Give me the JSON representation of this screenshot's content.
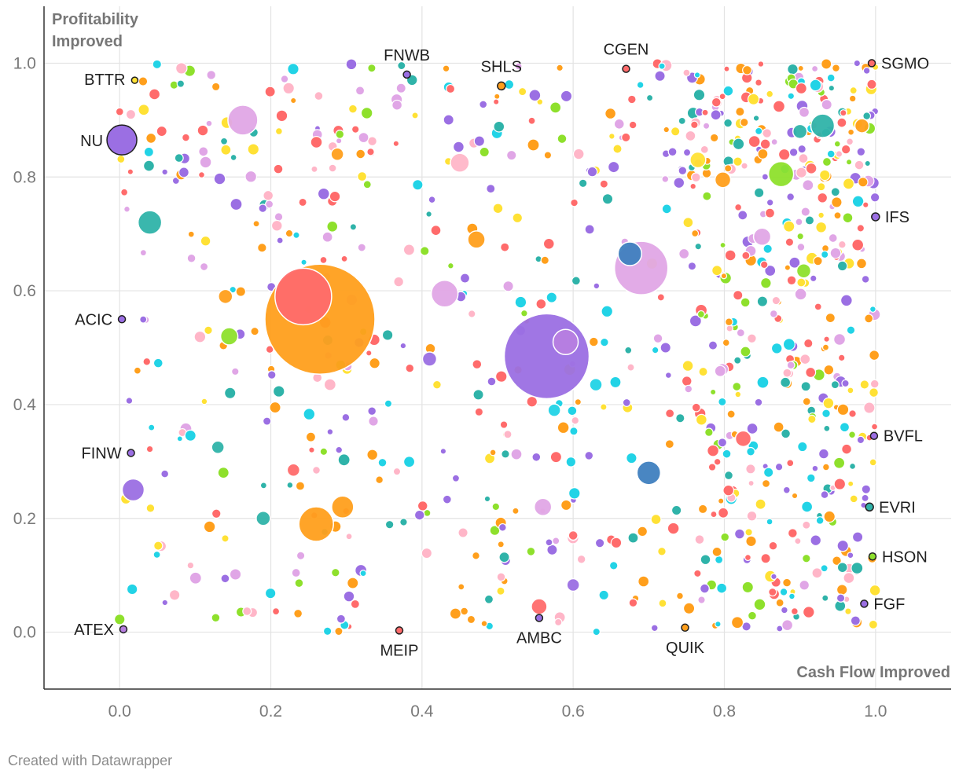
{
  "chart_data": {
    "type": "scatter",
    "xlim": [
      -0.1,
      1.1
    ],
    "ylim": [
      -0.1,
      1.1
    ],
    "x_ticks": [
      0.0,
      0.2,
      0.4,
      0.6,
      0.8,
      1.0
    ],
    "y_ticks": [
      0.0,
      0.2,
      0.4,
      0.6,
      0.8,
      1.0
    ],
    "x_tick_labels": [
      "0.0",
      "0.2",
      "0.4",
      "0.6",
      "0.8",
      "1.0"
    ],
    "y_tick_labels": [
      "0.0",
      "0.2",
      "0.4",
      "0.6",
      "0.8",
      "1.0"
    ],
    "xlabel": "Cash Flow Improved",
    "ylabel_top": "Profitability",
    "ylabel_bottom": "Improved",
    "grid": true,
    "labeled_points": [
      {
        "name": "BTTR",
        "x": 0.02,
        "y": 0.97,
        "size": 8,
        "color": "#ffe135"
      },
      {
        "name": "FNWB",
        "x": 0.38,
        "y": 0.98,
        "size": 9,
        "color": "#9b6fe3"
      },
      {
        "name": "SHLS",
        "x": 0.505,
        "y": 0.96,
        "size": 10,
        "color": "#ff9f1c"
      },
      {
        "name": "CGEN",
        "x": 0.67,
        "y": 0.99,
        "size": 9,
        "color": "#ff6b6b"
      },
      {
        "name": "SGMO",
        "x": 0.995,
        "y": 1.0,
        "size": 9,
        "color": "#ff6b6b"
      },
      {
        "name": "NU",
        "x": 0.003,
        "y": 0.865,
        "size": 38,
        "color": "#9b6fe3"
      },
      {
        "name": "IFS",
        "x": 1.0,
        "y": 0.73,
        "size": 10,
        "color": "#9b6fe3"
      },
      {
        "name": "ACIC",
        "x": 0.003,
        "y": 0.55,
        "size": 9,
        "color": "#9b6fe3"
      },
      {
        "name": "FINW",
        "x": 0.015,
        "y": 0.315,
        "size": 9,
        "color": "#9b6fe3"
      },
      {
        "name": "BVFL",
        "x": 0.998,
        "y": 0.345,
        "size": 9,
        "color": "#9b6fe3"
      },
      {
        "name": "EVRI",
        "x": 0.992,
        "y": 0.22,
        "size": 10,
        "color": "#2fb3a9"
      },
      {
        "name": "HSON",
        "x": 0.996,
        "y": 0.133,
        "size": 9,
        "color": "#8ee02c"
      },
      {
        "name": "FGF",
        "x": 0.985,
        "y": 0.05,
        "size": 9,
        "color": "#9b6fe3"
      },
      {
        "name": "ATEX",
        "x": 0.005,
        "y": 0.005,
        "size": 9,
        "color": "#b77ee0"
      },
      {
        "name": "MEIP",
        "x": 0.37,
        "y": 0.003,
        "size": 9,
        "color": "#ff6b6b"
      },
      {
        "name": "AMBC",
        "x": 0.555,
        "y": 0.025,
        "size": 9,
        "color": "#9b6fe3"
      },
      {
        "name": "QUIK",
        "x": 0.748,
        "y": 0.008,
        "size": 9,
        "color": "#ff9f1c"
      }
    ],
    "large_points": [
      {
        "x": 0.265,
        "y": 0.55,
        "size": 140,
        "color": "#ff9f1c"
      },
      {
        "x": 0.565,
        "y": 0.485,
        "size": 108,
        "color": "#9b6fe3"
      },
      {
        "x": 0.243,
        "y": 0.59,
        "size": 72,
        "color": "#ff6b6b"
      },
      {
        "x": 0.69,
        "y": 0.64,
        "size": 68,
        "color": "#e0a6e6"
      },
      {
        "x": 0.163,
        "y": 0.9,
        "size": 38,
        "color": "#e0a6e6"
      },
      {
        "x": 0.43,
        "y": 0.595,
        "size": 34,
        "color": "#e0a6e6"
      },
      {
        "x": 0.93,
        "y": 0.89,
        "size": 30,
        "color": "#2fb3a9"
      },
      {
        "x": 0.875,
        "y": 0.805,
        "size": 32,
        "color": "#8ee02c"
      },
      {
        "x": 0.26,
        "y": 0.19,
        "size": 44,
        "color": "#ff9f1c"
      },
      {
        "x": 0.295,
        "y": 0.22,
        "size": 28,
        "color": "#ff9f1c"
      },
      {
        "x": 0.7,
        "y": 0.28,
        "size": 30,
        "color": "#3f7fbf"
      },
      {
        "x": 0.675,
        "y": 0.665,
        "size": 30,
        "color": "#3f7fbf"
      },
      {
        "x": 0.04,
        "y": 0.72,
        "size": 30,
        "color": "#2fb3a9"
      },
      {
        "x": 0.018,
        "y": 0.25,
        "size": 28,
        "color": "#9b6fe3"
      },
      {
        "x": 0.45,
        "y": 0.825,
        "size": 24,
        "color": "#ffb6c8"
      },
      {
        "x": 0.59,
        "y": 0.51,
        "size": 32,
        "color": "#b77ee0"
      },
      {
        "x": 0.472,
        "y": 0.69,
        "size": 22,
        "color": "#ff9f1c"
      },
      {
        "x": 0.85,
        "y": 0.695,
        "size": 22,
        "color": "#e0a6e6"
      },
      {
        "x": 0.798,
        "y": 0.795,
        "size": 20,
        "color": "#ff9f1c"
      },
      {
        "x": 0.825,
        "y": 0.34,
        "size": 20,
        "color": "#ff6b6b"
      },
      {
        "x": 0.145,
        "y": 0.52,
        "size": 22,
        "color": "#8ee02c"
      },
      {
        "x": 0.56,
        "y": 0.22,
        "size": 22,
        "color": "#e0a6e6"
      },
      {
        "x": 0.41,
        "y": 0.48,
        "size": 18,
        "color": "#9b6fe3"
      },
      {
        "x": 0.765,
        "y": 0.83,
        "size": 20,
        "color": "#ffe135"
      },
      {
        "x": 0.982,
        "y": 0.89,
        "size": 18,
        "color": "#ff9f1c"
      },
      {
        "x": 0.905,
        "y": 0.635,
        "size": 18,
        "color": "#8ee02c"
      },
      {
        "x": 0.14,
        "y": 0.59,
        "size": 18,
        "color": "#ff9f1c"
      },
      {
        "x": 0.19,
        "y": 0.2,
        "size": 18,
        "color": "#2fb3a9"
      },
      {
        "x": 0.555,
        "y": 0.045,
        "size": 20,
        "color": "#ff6b6b"
      },
      {
        "x": 0.288,
        "y": 0.84,
        "size": 16,
        "color": "#ff9f1c"
      },
      {
        "x": 0.13,
        "y": 0.325,
        "size": 16,
        "color": "#2fb3a9"
      },
      {
        "x": 0.23,
        "y": 0.285,
        "size": 16,
        "color": "#ff6b6b"
      },
      {
        "x": 0.63,
        "y": 0.435,
        "size": 16,
        "color": "#22d3e6"
      },
      {
        "x": 0.575,
        "y": 0.39,
        "size": 16,
        "color": "#22d3e6"
      },
      {
        "x": 0.9,
        "y": 0.88,
        "size": 18,
        "color": "#2fb3a9"
      },
      {
        "x": 0.915,
        "y": 0.815,
        "size": 14,
        "color": "#ff6b6b"
      },
      {
        "x": 0.6,
        "y": 0.083,
        "size": 16,
        "color": "#9b6fe3"
      },
      {
        "x": 0.6,
        "y": 0.17,
        "size": 12,
        "color": "#ff6b6b"
      }
    ]
  }
}
